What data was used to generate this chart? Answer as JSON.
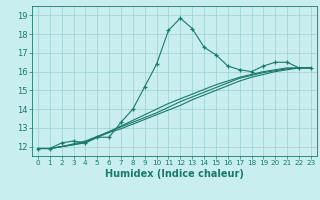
{
  "xlabel": "Humidex (Indice chaleur)",
  "background_color": "#c8eef0",
  "grid_color": "#9ecece",
  "line_color": "#1a7a6a",
  "xlim": [
    -0.5,
    23.5
  ],
  "ylim": [
    11.5,
    19.5
  ],
  "yticks": [
    12,
    13,
    14,
    15,
    16,
    17,
    18,
    19
  ],
  "xticks": [
    0,
    1,
    2,
    3,
    4,
    5,
    6,
    7,
    8,
    9,
    10,
    11,
    12,
    13,
    14,
    15,
    16,
    17,
    18,
    19,
    20,
    21,
    22,
    23
  ],
  "main_series": [
    11.9,
    11.9,
    12.2,
    12.3,
    12.2,
    12.5,
    12.5,
    13.3,
    14.0,
    15.2,
    16.4,
    18.2,
    18.85,
    18.3,
    17.3,
    16.9,
    16.3,
    16.1,
    16.0,
    16.3,
    16.5,
    16.5,
    16.2,
    16.2
  ],
  "trend_lines": [
    [
      11.9,
      11.9,
      12.0,
      12.1,
      12.2,
      12.5,
      12.8,
      13.1,
      13.4,
      13.7,
      14.0,
      14.3,
      14.55,
      14.8,
      15.05,
      15.3,
      15.5,
      15.7,
      15.85,
      16.0,
      16.1,
      16.2,
      16.2,
      16.2
    ],
    [
      11.9,
      11.9,
      12.0,
      12.15,
      12.3,
      12.55,
      12.8,
      13.05,
      13.3,
      13.55,
      13.8,
      14.1,
      14.4,
      14.65,
      14.9,
      15.15,
      15.4,
      15.65,
      15.8,
      15.95,
      16.05,
      16.15,
      16.2,
      16.2
    ],
    [
      11.9,
      11.9,
      12.0,
      12.1,
      12.25,
      12.5,
      12.75,
      12.95,
      13.2,
      13.45,
      13.7,
      13.95,
      14.2,
      14.5,
      14.75,
      15.0,
      15.25,
      15.5,
      15.7,
      15.85,
      16.0,
      16.1,
      16.2,
      16.2
    ]
  ]
}
